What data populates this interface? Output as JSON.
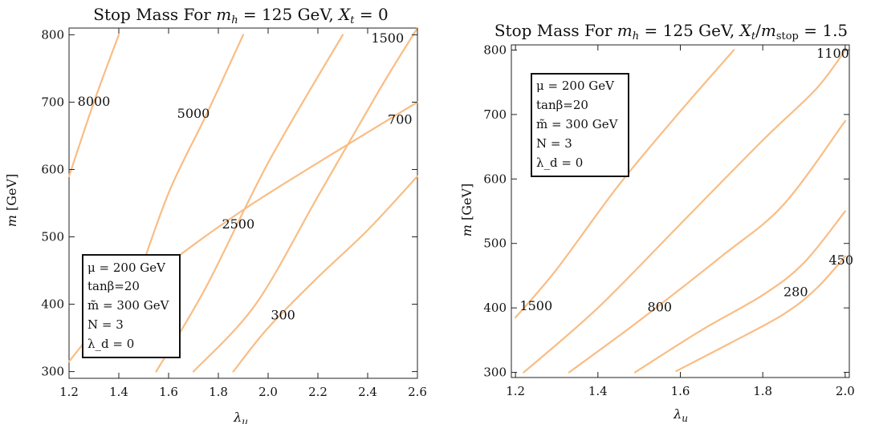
{
  "chart_data": [
    {
      "type": "contour",
      "title": "Stop Mass For m_h = 125 GeV, X_t = 0",
      "title_parts": [
        "Stop Mass For ",
        "m",
        "h",
        " = 125 GeV, ",
        "X",
        "t",
        " = 0"
      ],
      "xlabel": "λ_u",
      "xlabel_parts": [
        "λ",
        "u"
      ],
      "ylabel": "m [GeV]",
      "ylabel_parts": [
        "m",
        " [GeV]"
      ],
      "xlim": [
        1.2,
        2.6
      ],
      "ylim": [
        290,
        810
      ],
      "xticks": [
        "1.2",
        "1.4",
        "1.6",
        "1.8",
        "2.0",
        "2.2",
        "2.4",
        "2.6"
      ],
      "yticks": [
        "300",
        "400",
        "500",
        "600",
        "700",
        "800"
      ],
      "legend": {
        "placement": "bottom-left",
        "lines": [
          "μ = 200 GeV",
          "tanβ=20",
          "m̃ = 300 GeV",
          "N = 3",
          "λ_d = 0"
        ]
      },
      "contours": [
        {
          "level": "8000",
          "points": [
            [
              1.2,
              590
            ],
            [
              1.3,
              700
            ],
            [
              1.4,
              800
            ]
          ]
        },
        {
          "level": "5000",
          "points": [
            [
              1.46,
              420
            ],
            [
              1.6,
              565
            ],
            [
              1.75,
              680
            ],
            [
              1.9,
              800
            ]
          ]
        },
        {
          "level": "2500",
          "points": [
            [
              1.55,
              300
            ],
            [
              1.75,
              425
            ],
            [
              2.0,
              610
            ],
            [
              2.3,
              800
            ]
          ]
        },
        {
          "level": "1500",
          "points": [
            [
              1.7,
              300
            ],
            [
              1.95,
              400
            ],
            [
              2.2,
              560
            ],
            [
              2.45,
              720
            ],
            [
              2.6,
              810
            ]
          ]
        },
        {
          "level": "700",
          "points": [
            [
              1.2,
              315
            ],
            [
              1.35,
              380
            ],
            [
              1.6,
              460
            ],
            [
              1.9,
              540
            ],
            [
              2.2,
              610
            ],
            [
              2.6,
              700
            ]
          ]
        },
        {
          "level": "300",
          "points": [
            [
              1.86,
              300
            ],
            [
              2.0,
              365
            ],
            [
              2.2,
              440
            ],
            [
              2.4,
              510
            ],
            [
              2.6,
              590
            ]
          ]
        }
      ],
      "contour_labels": [
        {
          "text": "8000",
          "x": 1.3,
          "y": 700
        },
        {
          "text": "5000",
          "x": 1.7,
          "y": 682
        },
        {
          "text": "2500",
          "x": 1.88,
          "y": 518
        },
        {
          "text": "1500",
          "x": 2.48,
          "y": 794
        },
        {
          "text": "700",
          "x": 2.53,
          "y": 673
        },
        {
          "text": "300",
          "x": 2.06,
          "y": 383
        }
      ]
    },
    {
      "type": "contour",
      "title": "Stop Mass For m_h = 125 GeV, X_t/m_stop = 1.5",
      "title_parts": [
        "Stop Mass For ",
        "m",
        "h",
        " = 125 GeV, ",
        "X",
        "t",
        "/",
        "m",
        "stop",
        " = 1.5"
      ],
      "xlabel": "λ_u",
      "xlabel_parts": [
        "λ",
        "u"
      ],
      "ylabel": "m [GeV]",
      "ylabel_parts": [
        "m",
        " [GeV]"
      ],
      "xlim": [
        1.19,
        2.01
      ],
      "ylim": [
        292,
        808
      ],
      "xticks": [
        "1.2",
        "1.4",
        "1.6",
        "1.8",
        "2.0"
      ],
      "yticks": [
        "300",
        "400",
        "500",
        "600",
        "700",
        "800"
      ],
      "legend": {
        "placement": "top-left",
        "lines": [
          "μ = 200 GeV",
          "tanβ=20",
          "m̃ = 300 GeV",
          "N = 3",
          "λ_d = 0"
        ]
      },
      "contours": [
        {
          "level": "1500",
          "points": [
            [
              1.2,
              385
            ],
            [
              1.3,
              460
            ],
            [
              1.45,
              590
            ],
            [
              1.6,
              705
            ],
            [
              1.73,
              800
            ]
          ]
        },
        {
          "level": "1100",
          "points": [
            [
              1.22,
              300
            ],
            [
              1.4,
              400
            ],
            [
              1.6,
              530
            ],
            [
              1.8,
              660
            ],
            [
              1.93,
              740
            ],
            [
              2.0,
              800
            ]
          ]
        },
        {
          "level": "800",
          "points": [
            [
              1.33,
              300
            ],
            [
              1.5,
              380
            ],
            [
              1.7,
              480
            ],
            [
              1.85,
              560
            ],
            [
              2.0,
              690
            ]
          ]
        },
        {
          "level": "450",
          "points": [
            [
              1.49,
              300
            ],
            [
              1.65,
              365
            ],
            [
              1.8,
              420
            ],
            [
              1.9,
              470
            ],
            [
              2.0,
              550
            ]
          ]
        },
        {
          "level": "280",
          "points": [
            [
              1.59,
              302
            ],
            [
              1.72,
              345
            ],
            [
              1.85,
              390
            ],
            [
              1.93,
              430
            ],
            [
              2.0,
              480
            ]
          ]
        }
      ],
      "contour_labels": [
        {
          "text": "1500",
          "x": 1.25,
          "y": 402
        },
        {
          "text": "800",
          "x": 1.55,
          "y": 400
        },
        {
          "text": "1100",
          "x": 1.97,
          "y": 794
        },
        {
          "text": "450",
          "x": 1.99,
          "y": 473
        },
        {
          "text": "280",
          "x": 1.88,
          "y": 424
        }
      ]
    }
  ]
}
